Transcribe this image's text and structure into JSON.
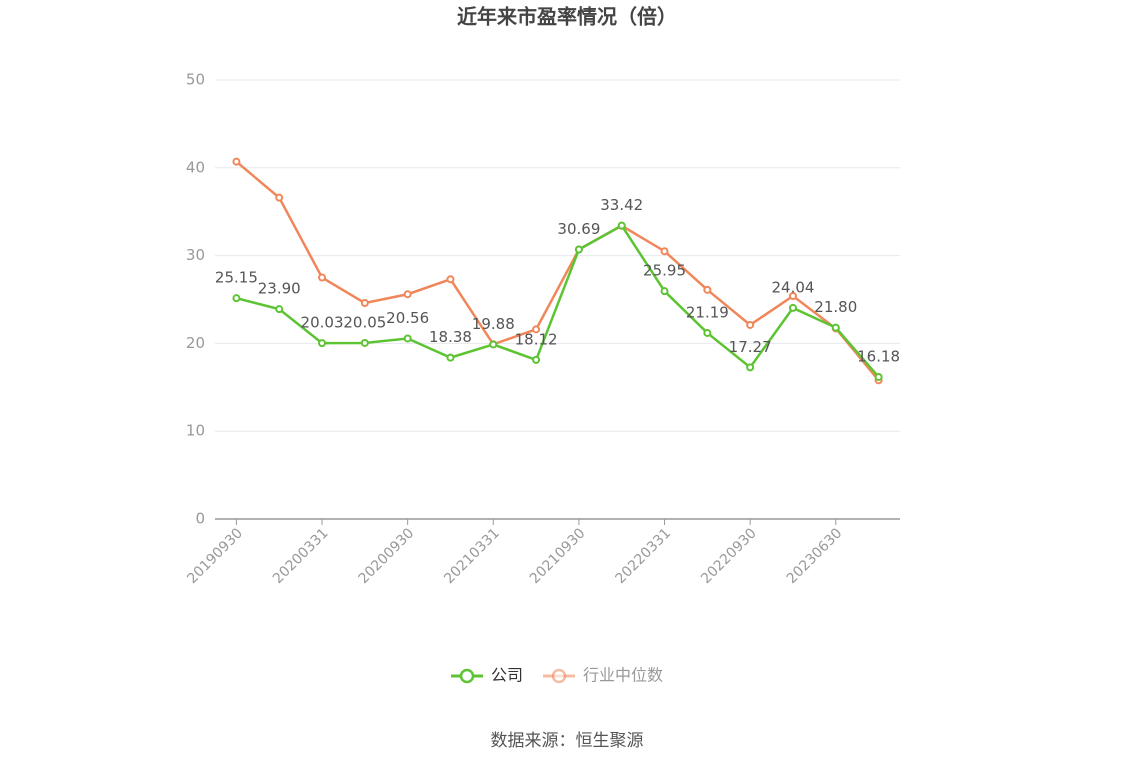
{
  "chart_data": {
    "type": "line",
    "title": "近年来市盈率情况（倍）",
    "source": "数据来源：恒生聚源",
    "categories": [
      "20190930",
      null,
      "20200331",
      null,
      "20200930",
      null,
      "20210331",
      null,
      "20210930",
      null,
      "20220331",
      null,
      "20220930",
      null,
      "20230630",
      null
    ],
    "series": [
      {
        "name": "公司",
        "color": "#5cc433",
        "values": [
          25.15,
          23.9,
          20.03,
          20.05,
          20.56,
          18.38,
          19.88,
          18.12,
          30.69,
          33.42,
          25.95,
          21.19,
          17.27,
          24.04,
          21.8,
          16.18
        ],
        "value_labels": [
          "25.15",
          "23.90",
          "20.03",
          "20.05",
          "20.56",
          "18.38",
          "19.88",
          "18.12",
          "30.69",
          "33.42",
          "25.95",
          "21.19",
          "17.27",
          "24.04",
          "21.80",
          "16.18"
        ]
      },
      {
        "name": "行业中位数",
        "color": "#f0875a",
        "values": [
          40.7,
          36.6,
          27.5,
          24.6,
          25.6,
          27.3,
          19.9,
          21.6,
          30.7,
          33.4,
          30.5,
          26.1,
          22.1,
          25.4,
          21.7,
          15.8
        ]
      }
    ],
    "ylim": [
      0,
      50
    ],
    "yticks": [
      0,
      10,
      20,
      30,
      40,
      50
    ],
    "grid": true,
    "legend": "bottom"
  }
}
